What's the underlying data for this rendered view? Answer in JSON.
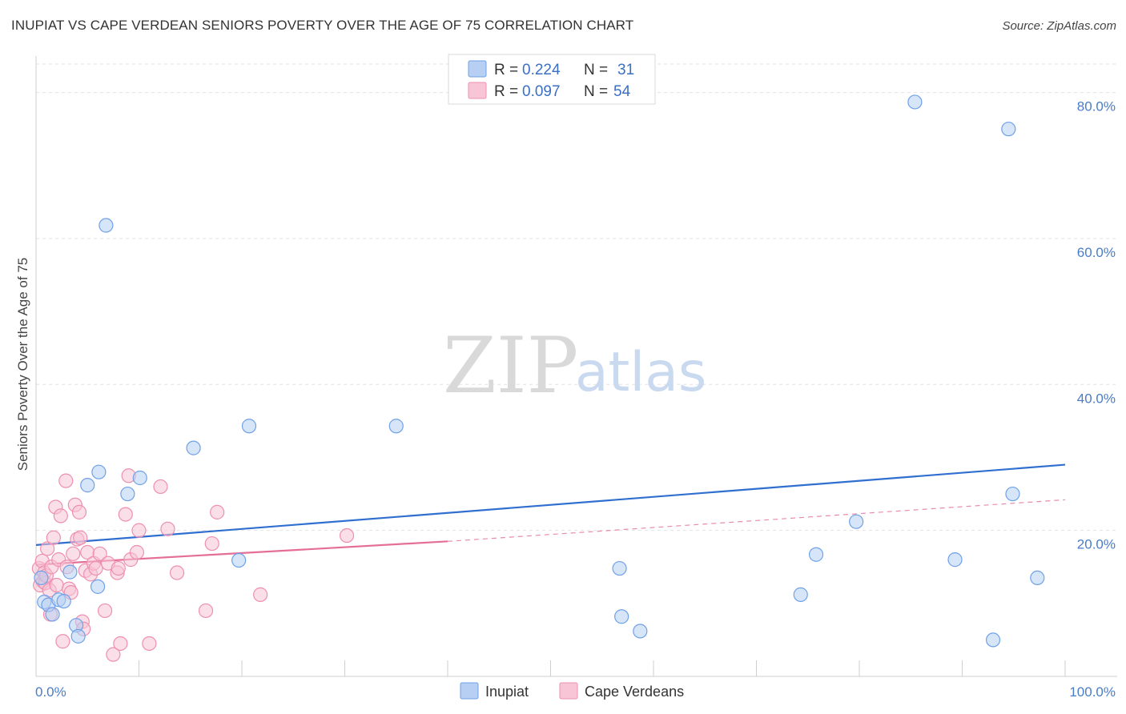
{
  "title": "INUPIAT VS CAPE VERDEAN SENIORS POVERTY OVER THE AGE OF 75 CORRELATION CHART",
  "source": "Source: ZipAtlas.com",
  "watermark": {
    "zip": "ZIP",
    "atlas": "atlas"
  },
  "chart_data": {
    "type": "scatter",
    "xlabel": "",
    "ylabel": "Seniors Poverty Over the Age of 75",
    "xlim": [
      0,
      100
    ],
    "ylim": [
      0,
      85
    ],
    "x_tick_labels": [
      {
        "value": 0,
        "label": "0.0%"
      },
      {
        "value": 100,
        "label": "100.0%"
      }
    ],
    "y_tick_labels": [
      {
        "value": 20,
        "label": "20.0%"
      },
      {
        "value": 40,
        "label": "40.0%"
      },
      {
        "value": 60,
        "label": "60.0%"
      },
      {
        "value": 80,
        "label": "80.0%"
      }
    ],
    "grid": true,
    "legend_position": "top-center",
    "legend": [
      {
        "r_label": "R = ",
        "r_value": "0.224",
        "n_label": "N = ",
        "n_value": "31",
        "color": "#6fa1e8",
        "fill": "#b6cff3"
      },
      {
        "r_label": "R = ",
        "r_value": "0.097",
        "n_label": "N = ",
        "n_value": "54",
        "color": "#ee8fb0",
        "fill": "#f8c5d6"
      }
    ],
    "series": [
      {
        "name": "Inupiat",
        "color": "#6fa1e8",
        "fill": "#b6cff3",
        "line_color": "#2f6fd0",
        "trend": {
          "x0": 0,
          "y0": 18.0,
          "x1": 100,
          "y1": 29.0
        },
        "points": [
          [
            0.5,
            13.5
          ],
          [
            0.8,
            10.2
          ],
          [
            1.2,
            9.8
          ],
          [
            1.6,
            8.5
          ],
          [
            2.2,
            10.5
          ],
          [
            2.7,
            10.3
          ],
          [
            3.3,
            14.3
          ],
          [
            3.9,
            7.0
          ],
          [
            4.1,
            5.5
          ],
          [
            5.0,
            26.2
          ],
          [
            6.1,
            28.0
          ],
          [
            6.0,
            12.3
          ],
          [
            6.8,
            61.8
          ],
          [
            8.9,
            25.0
          ],
          [
            10.1,
            27.2
          ],
          [
            15.3,
            31.3
          ],
          [
            19.7,
            15.9
          ],
          [
            20.7,
            34.3
          ],
          [
            35.0,
            34.3
          ],
          [
            56.7,
            14.8
          ],
          [
            56.9,
            8.2
          ],
          [
            58.7,
            6.2
          ],
          [
            74.3,
            11.2
          ],
          [
            75.8,
            16.7
          ],
          [
            79.7,
            21.2
          ],
          [
            85.4,
            78.7
          ],
          [
            89.3,
            16.0
          ],
          [
            93.0,
            5.0
          ],
          [
            94.5,
            75.0
          ],
          [
            94.9,
            25.0
          ],
          [
            97.3,
            13.5
          ]
        ]
      },
      {
        "name": "Cape Verdeans",
        "color": "#ee8fb0",
        "fill": "#f8c5d6",
        "line_color": "#e46e98",
        "trend": {
          "x0": 0,
          "y0": 15.3,
          "x1": 40,
          "y1": 18.5
        },
        "trend_dashed": {
          "x0": 40,
          "y0": 18.5,
          "x1": 100,
          "y1": 24.2
        },
        "points": [
          [
            0.3,
            14.8
          ],
          [
            0.4,
            12.5
          ],
          [
            0.6,
            15.8
          ],
          [
            0.7,
            13.0
          ],
          [
            0.8,
            14.2
          ],
          [
            0.9,
            12.8
          ],
          [
            1.0,
            13.8
          ],
          [
            1.1,
            17.5
          ],
          [
            1.3,
            11.8
          ],
          [
            1.4,
            8.5
          ],
          [
            1.5,
            15.0
          ],
          [
            1.7,
            19.0
          ],
          [
            1.9,
            23.2
          ],
          [
            2.0,
            12.5
          ],
          [
            2.2,
            16.0
          ],
          [
            2.4,
            22.0
          ],
          [
            2.6,
            4.8
          ],
          [
            2.9,
            26.8
          ],
          [
            3.0,
            15.0
          ],
          [
            3.2,
            12.0
          ],
          [
            3.4,
            11.5
          ],
          [
            3.6,
            16.8
          ],
          [
            3.8,
            23.5
          ],
          [
            4.0,
            18.8
          ],
          [
            4.2,
            22.5
          ],
          [
            4.3,
            19.0
          ],
          [
            4.5,
            7.5
          ],
          [
            4.6,
            6.5
          ],
          [
            4.8,
            14.5
          ],
          [
            5.0,
            17.0
          ],
          [
            5.3,
            14.0
          ],
          [
            5.6,
            15.5
          ],
          [
            5.8,
            14.8
          ],
          [
            6.2,
            16.8
          ],
          [
            6.7,
            9.0
          ],
          [
            7.0,
            15.5
          ],
          [
            7.5,
            3.0
          ],
          [
            7.9,
            14.2
          ],
          [
            8.2,
            4.5
          ],
          [
            8.7,
            22.2
          ],
          [
            9.0,
            27.5
          ],
          [
            9.2,
            16.0
          ],
          [
            9.8,
            17.0
          ],
          [
            10.0,
            20.0
          ],
          [
            11.0,
            4.5
          ],
          [
            12.1,
            26.0
          ],
          [
            12.8,
            20.2
          ],
          [
            13.7,
            14.2
          ],
          [
            16.5,
            9.0
          ],
          [
            17.1,
            18.2
          ],
          [
            17.6,
            22.5
          ],
          [
            21.8,
            11.2
          ],
          [
            30.2,
            19.3
          ],
          [
            8.0,
            14.8
          ]
        ]
      }
    ]
  }
}
